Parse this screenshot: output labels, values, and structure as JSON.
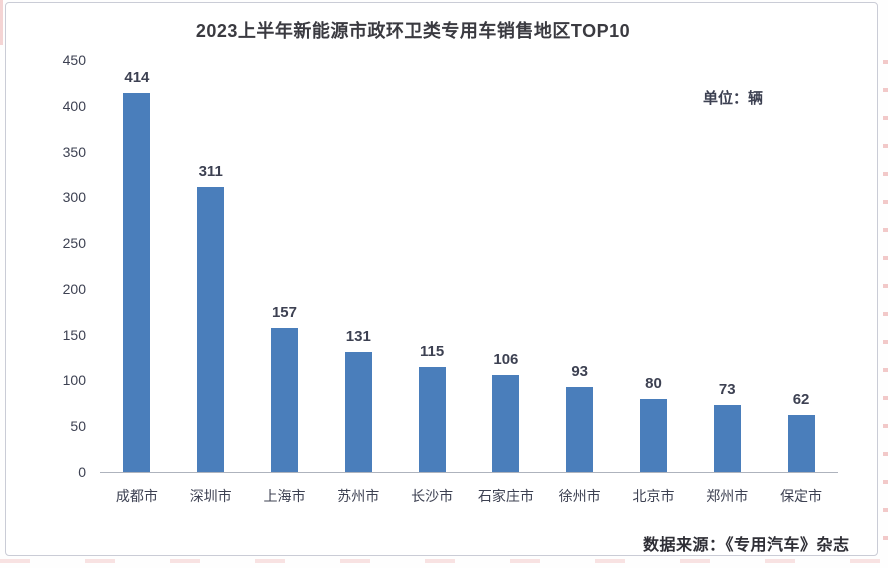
{
  "chart_data": {
    "type": "bar",
    "title": "2023上半年新能源市政环卫类专用车销售地区TOP10",
    "unit_label": "单位：辆",
    "source": "数据来源：《专用汽车》杂志",
    "categories": [
      "成都市",
      "深圳市",
      "上海市",
      "苏州市",
      "长沙市",
      "石家庄市",
      "徐州市",
      "北京市",
      "郑州市",
      "保定市"
    ],
    "values": [
      414,
      311,
      157,
      131,
      115,
      106,
      93,
      80,
      73,
      62
    ],
    "ylim": [
      0,
      450
    ],
    "yticks": [
      0,
      50,
      100,
      150,
      200,
      250,
      300,
      350,
      400,
      450
    ],
    "grid": false,
    "legend": "none",
    "bar_color": "#4a7ebb",
    "label_color": "#3d4152",
    "title_color": "#3a3a40",
    "axis_line_color": "#aeb3bd"
  }
}
